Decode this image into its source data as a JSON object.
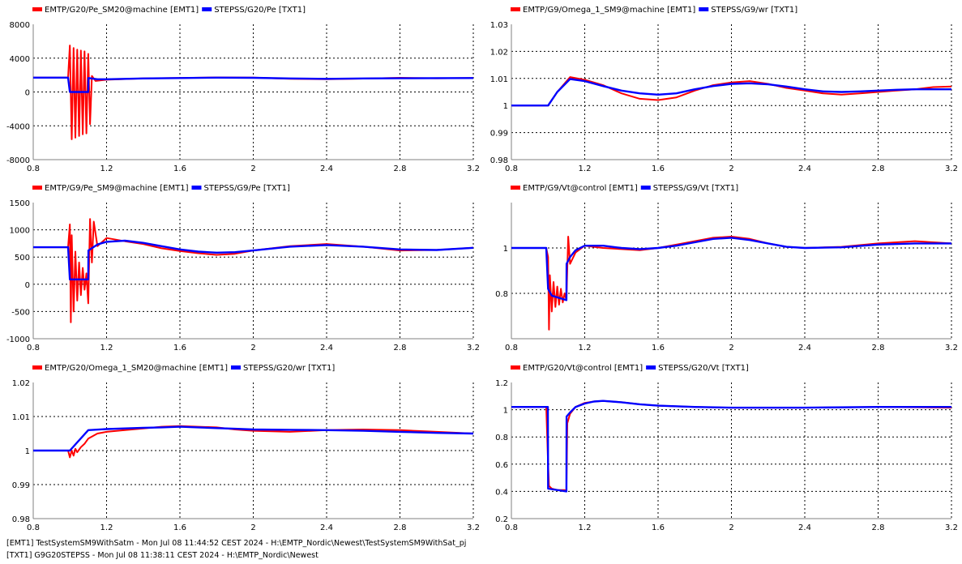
{
  "colors": {
    "emt": "#ff0000",
    "txt": "#0000ff",
    "grid": "#000000",
    "axis": "#808080"
  },
  "footer": {
    "line1": "[EMT1] TestSystemSM9WithSatm - Mon Jul 08 11:44:52 CEST 2024 - H:\\EMTP_Nordic\\Newest\\TestSystemSM9WithSat_pj",
    "line2": "[TXT1] G9G20STEPSS - Mon Jul 08 11:38:11 CEST 2024 - H:\\EMTP_Nordic\\Newest"
  },
  "chart_data": [
    {
      "type": "line",
      "xlim": [
        0.8,
        3.2
      ],
      "ylim": [
        -8000,
        8000
      ],
      "xticks": [
        "0.8",
        "1.2",
        "1.6",
        "2",
        "2.4",
        "2.8",
        "3.2"
      ],
      "yticks": [
        "8000",
        "4000",
        "0",
        "-4000",
        "-8000"
      ],
      "grid": true,
      "legend_position": "top-left",
      "series": [
        {
          "name": "EMTP/G20/Pe_SM20@machine [EMT1]",
          "color": "#ff0000",
          "x": [
            0.8,
            0.99,
            1.0,
            1.01,
            1.02,
            1.03,
            1.04,
            1.05,
            1.06,
            1.07,
            1.08,
            1.09,
            1.1,
            1.11,
            1.12,
            1.14,
            1.2,
            1.4,
            1.6,
            1.8,
            2.0,
            2.2,
            2.4,
            2.6,
            2.8,
            3.0,
            3.2
          ],
          "y": [
            1700,
            1700,
            5500,
            -5600,
            5200,
            -5400,
            5000,
            -5200,
            4900,
            -5000,
            4800,
            -4900,
            4500,
            -3800,
            1900,
            1300,
            1450,
            1600,
            1650,
            1720,
            1700,
            1560,
            1500,
            1580,
            1680,
            1620,
            1650
          ]
        },
        {
          "name": "STEPSS/G20/Pe [TXT1]",
          "color": "#0000ff",
          "x": [
            0.8,
            0.99,
            1.0,
            1.1,
            1.101,
            1.15,
            1.2,
            1.4,
            1.6,
            1.8,
            2.0,
            2.2,
            2.4,
            2.6,
            2.8,
            3.0,
            3.2
          ],
          "y": [
            1700,
            1700,
            0,
            0,
            1650,
            1500,
            1500,
            1600,
            1650,
            1700,
            1680,
            1600,
            1550,
            1600,
            1620,
            1640,
            1650
          ]
        }
      ]
    },
    {
      "type": "line",
      "xlim": [
        0.8,
        3.2
      ],
      "ylim": [
        0.98,
        1.03
      ],
      "xticks": [
        "0.8",
        "1.2",
        "1.6",
        "2",
        "2.4",
        "2.8",
        "3.2"
      ],
      "yticks": [
        "1.03",
        "1.02",
        "1.01",
        "1",
        "0.99",
        "0.98"
      ],
      "grid": true,
      "legend_position": "top-left",
      "series": [
        {
          "name": "EMTP/G9/Omega_1_SM9@machine [EMT1]",
          "color": "#ff0000",
          "x": [
            0.8,
            1.0,
            1.05,
            1.12,
            1.2,
            1.3,
            1.4,
            1.5,
            1.6,
            1.7,
            1.8,
            1.9,
            2.0,
            2.1,
            2.2,
            2.3,
            2.4,
            2.5,
            2.6,
            2.7,
            2.8,
            2.9,
            3.0,
            3.1,
            3.2
          ],
          "y": [
            1.0,
            1.0,
            1.005,
            1.0105,
            1.0095,
            1.0075,
            1.0045,
            1.0025,
            1.002,
            1.003,
            1.0055,
            1.0075,
            1.0085,
            1.009,
            1.008,
            1.0065,
            1.0055,
            1.0045,
            1.004,
            1.0045,
            1.005,
            1.0055,
            1.006,
            1.0068,
            1.007
          ]
        },
        {
          "name": "STEPSS/G9/wr [TXT1]",
          "color": "#0000ff",
          "x": [
            0.8,
            1.0,
            1.05,
            1.12,
            1.2,
            1.3,
            1.4,
            1.5,
            1.6,
            1.7,
            1.8,
            1.9,
            2.0,
            2.1,
            2.2,
            2.3,
            2.4,
            2.5,
            2.6,
            2.7,
            2.8,
            2.9,
            3.0,
            3.1,
            3.2
          ],
          "y": [
            1.0,
            1.0,
            1.005,
            1.0098,
            1.009,
            1.0072,
            1.0055,
            1.0045,
            1.004,
            1.0045,
            1.006,
            1.0072,
            1.008,
            1.0082,
            1.0078,
            1.007,
            1.006,
            1.0052,
            1.005,
            1.0052,
            1.0055,
            1.0058,
            1.006,
            1.006,
            1.006
          ]
        }
      ]
    },
    {
      "type": "line",
      "xlim": [
        0.8,
        3.2
      ],
      "ylim": [
        -1000,
        1500
      ],
      "xticks": [
        "0.8",
        "1.2",
        "1.6",
        "2",
        "2.4",
        "2.8",
        "3.2"
      ],
      "yticks": [
        "1500",
        "1000",
        "500",
        "0",
        "-500",
        "-1000"
      ],
      "grid": true,
      "legend_position": "top-left",
      "series": [
        {
          "name": "EMTP/G9/Pe_SM9@machine [EMT1]",
          "color": "#ff0000",
          "x": [
            0.8,
            0.99,
            1.0,
            1.005,
            1.01,
            1.02,
            1.03,
            1.04,
            1.05,
            1.06,
            1.07,
            1.08,
            1.09,
            1.1,
            1.11,
            1.12,
            1.13,
            1.15,
            1.2,
            1.3,
            1.4,
            1.5,
            1.6,
            1.7,
            1.8,
            1.9,
            2.0,
            2.2,
            2.4,
            2.6,
            2.8,
            3.0,
            3.2
          ],
          "y": [
            680,
            680,
            1100,
            -700,
            900,
            -500,
            600,
            -300,
            400,
            -200,
            300,
            -100,
            200,
            -350,
            1200,
            400,
            1150,
            700,
            850,
            790,
            740,
            660,
            610,
            570,
            540,
            560,
            620,
            700,
            740,
            690,
            620,
            630,
            670
          ]
        },
        {
          "name": "STEPSS/G9/Pe [TXT1]",
          "color": "#0000ff",
          "x": [
            0.8,
            0.99,
            1.0,
            1.1,
            1.101,
            1.15,
            1.2,
            1.3,
            1.4,
            1.5,
            1.6,
            1.7,
            1.8,
            1.9,
            2.0,
            2.2,
            2.4,
            2.6,
            2.8,
            3.0,
            3.2
          ],
          "y": [
            680,
            680,
            90,
            90,
            620,
            730,
            780,
            800,
            760,
            700,
            640,
            600,
            580,
            590,
            620,
            690,
            720,
            690,
            640,
            630,
            670
          ]
        }
      ]
    },
    {
      "type": "line",
      "xlim": [
        0.8,
        3.2
      ],
      "ylim": [
        0.6,
        1.2
      ],
      "xticks": [
        "0.8",
        "1.2",
        "1.6",
        "2",
        "2.4",
        "2.8",
        "3.2"
      ],
      "yticks": [
        "1",
        "0.8"
      ],
      "grid": true,
      "legend_position": "top-left",
      "series": [
        {
          "name": "EMTP/G9/Vt@control [EMT1]",
          "color": "#ff0000",
          "x": [
            0.8,
            0.99,
            1.0,
            1.005,
            1.01,
            1.02,
            1.03,
            1.04,
            1.05,
            1.06,
            1.07,
            1.08,
            1.09,
            1.1,
            1.11,
            1.12,
            1.15,
            1.2,
            1.3,
            1.4,
            1.5,
            1.6,
            1.7,
            1.8,
            1.9,
            2.0,
            2.1,
            2.2,
            2.3,
            2.4,
            2.6,
            2.8,
            3.0,
            3.2
          ],
          "y": [
            1.0,
            1.0,
            0.96,
            0.64,
            0.88,
            0.72,
            0.85,
            0.74,
            0.83,
            0.75,
            0.82,
            0.76,
            0.8,
            0.77,
            1.05,
            0.93,
            0.98,
            1.01,
            1.0,
            0.995,
            0.99,
            1.0,
            1.015,
            1.03,
            1.045,
            1.05,
            1.04,
            1.02,
            1.005,
            1.0,
            1.005,
            1.02,
            1.03,
            1.02
          ]
        },
        {
          "name": "STEPSS/G9/Vt [TXT1]",
          "color": "#0000ff",
          "x": [
            0.8,
            0.99,
            1.0,
            1.02,
            1.1,
            1.101,
            1.12,
            1.15,
            1.2,
            1.3,
            1.4,
            1.5,
            1.6,
            1.7,
            1.8,
            1.9,
            2.0,
            2.1,
            2.2,
            2.3,
            2.4,
            2.6,
            2.8,
            3.0,
            3.2
          ],
          "y": [
            1.0,
            1.0,
            0.82,
            0.79,
            0.77,
            0.93,
            0.96,
            0.99,
            1.01,
            1.01,
            1.0,
            0.995,
            1.0,
            1.01,
            1.025,
            1.04,
            1.045,
            1.035,
            1.02,
            1.005,
            1.0,
            1.003,
            1.015,
            1.02,
            1.02
          ]
        }
      ]
    },
    {
      "type": "line",
      "xlim": [
        0.8,
        3.2
      ],
      "ylim": [
        0.98,
        1.02
      ],
      "xticks": [
        "0.8",
        "1.2",
        "1.6",
        "2",
        "2.4",
        "2.8",
        "3.2"
      ],
      "yticks": [
        "1.02",
        "1.01",
        "1",
        "0.99",
        "0.98"
      ],
      "grid": true,
      "legend_position": "top-left",
      "series": [
        {
          "name": "EMTP/G20/Omega_1_SM20@machine [EMT1]",
          "color": "#ff0000",
          "x": [
            0.8,
            0.99,
            1.0,
            1.01,
            1.02,
            1.03,
            1.04,
            1.06,
            1.08,
            1.1,
            1.15,
            1.2,
            1.3,
            1.4,
            1.5,
            1.6,
            1.7,
            1.8,
            1.9,
            2.0,
            2.2,
            2.4,
            2.6,
            2.8,
            3.0,
            3.2
          ],
          "y": [
            1.0,
            1.0,
            0.998,
            1.0,
            0.9985,
            1.0005,
            0.9995,
            1.001,
            1.002,
            1.0035,
            1.005,
            1.0055,
            1.006,
            1.0065,
            1.007,
            1.0072,
            1.007,
            1.0068,
            1.0062,
            1.0058,
            1.0055,
            1.006,
            1.0062,
            1.006,
            1.0055,
            1.005
          ]
        },
        {
          "name": "STEPSS/G20/wr [TXT1]",
          "color": "#0000ff",
          "x": [
            0.8,
            0.99,
            1.0,
            1.1,
            1.2,
            1.3,
            1.4,
            1.5,
            1.6,
            1.7,
            1.8,
            1.9,
            2.0,
            2.2,
            2.4,
            2.6,
            2.8,
            3.0,
            3.2
          ],
          "y": [
            1.0,
            1.0,
            1.0,
            1.006,
            1.0063,
            1.0065,
            1.0067,
            1.0068,
            1.007,
            1.0068,
            1.0066,
            1.0064,
            1.0062,
            1.0061,
            1.006,
            1.0058,
            1.0055,
            1.0052,
            1.005
          ]
        }
      ]
    },
    {
      "type": "line",
      "xlim": [
        0.8,
        3.2
      ],
      "ylim": [
        0.2,
        1.2
      ],
      "xticks": [
        "0.8",
        "1.2",
        "1.6",
        "2",
        "2.4",
        "2.8",
        "3.2"
      ],
      "yticks": [
        "1.2",
        "1",
        "0.8",
        "0.6",
        "0.4",
        "0.2"
      ],
      "grid": true,
      "legend_position": "top-left",
      "series": [
        {
          "name": "EMTP/G20/Vt@control [EMT1]",
          "color": "#ff0000",
          "x": [
            0.8,
            0.99,
            1.0,
            1.005,
            1.02,
            1.05,
            1.09,
            1.1,
            1.105,
            1.12,
            1.15,
            1.2,
            1.25,
            1.3,
            1.4,
            1.5,
            1.6,
            1.8,
            2.0,
            2.4,
            2.8,
            3.2
          ],
          "y": [
            1.02,
            1.02,
            0.6,
            0.44,
            0.42,
            0.41,
            0.41,
            0.4,
            0.9,
            0.97,
            1.02,
            1.05,
            1.06,
            1.065,
            1.055,
            1.04,
            1.03,
            1.02,
            1.015,
            1.015,
            1.02,
            1.015
          ]
        },
        {
          "name": "STEPSS/G20/Vt [TXT1]",
          "color": "#0000ff",
          "x": [
            0.8,
            0.999,
            1.0,
            1.1,
            1.101,
            1.12,
            1.15,
            1.2,
            1.25,
            1.3,
            1.4,
            1.5,
            1.6,
            1.8,
            2.0,
            2.4,
            2.8,
            3.2
          ],
          "y": [
            1.02,
            1.02,
            0.42,
            0.4,
            0.95,
            0.98,
            1.02,
            1.045,
            1.06,
            1.065,
            1.055,
            1.04,
            1.03,
            1.02,
            1.015,
            1.015,
            1.02,
            1.02
          ]
        }
      ]
    }
  ]
}
